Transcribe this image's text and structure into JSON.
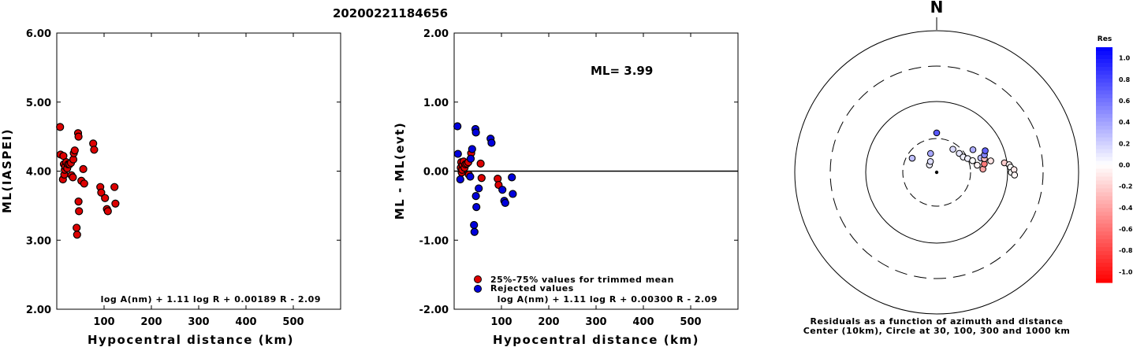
{
  "figure_title": "20200221184656",
  "chart_data": [
    {
      "type": "scatter",
      "ylabel": "ML(IASPEI)",
      "xlabel": "Hypocentral distance (km)",
      "xlim": [
        0,
        600
      ],
      "ylim": [
        2.0,
        6.0
      ],
      "xticks": [
        100,
        200,
        300,
        400,
        500
      ],
      "xtick_labels": [
        "100",
        "200",
        "300",
        "400",
        "500"
      ],
      "yticks": [
        2.0,
        3.0,
        4.0,
        5.0,
        6.0
      ],
      "ytick_labels": [
        "2.00",
        "3.00",
        "4.00",
        "5.00",
        "6.00"
      ],
      "formula": "log A(nm) + 1.11 log R + 0.00189 R - 2.09",
      "series": [
        {
          "color": "#dd0000",
          "points": [
            [
              7,
              4.64
            ],
            [
              8,
              4.24
            ],
            [
              13,
              3.88
            ],
            [
              14,
              4.22
            ],
            [
              15,
              4.1
            ],
            [
              16,
              3.95
            ],
            [
              17,
              4.02
            ],
            [
              18,
              4.07
            ],
            [
              20,
              4.13
            ],
            [
              22,
              4.04
            ],
            [
              24,
              4.1
            ],
            [
              27,
              4.1
            ],
            [
              30,
              4.12
            ],
            [
              31,
              3.94
            ],
            [
              34,
              3.91
            ],
            [
              35,
              4.17
            ],
            [
              36,
              4.26
            ],
            [
              38,
              4.3
            ],
            [
              42,
              3.18
            ],
            [
              43,
              3.08
            ],
            [
              45,
              4.55
            ],
            [
              46,
              4.5
            ],
            [
              46,
              3.56
            ],
            [
              47,
              3.42
            ],
            [
              52,
              3.86
            ],
            [
              56,
              4.03
            ],
            [
              58,
              3.82
            ],
            [
              77,
              4.4
            ],
            [
              79,
              4.31
            ],
            [
              92,
              3.77
            ],
            [
              94,
              3.69
            ],
            [
              102,
              3.61
            ],
            [
              106,
              3.45
            ],
            [
              108,
              3.42
            ],
            [
              122,
              3.77
            ],
            [
              124,
              3.53
            ]
          ]
        }
      ]
    },
    {
      "type": "scatter",
      "ylabel": "ML - ML(evt)",
      "xlabel": "Hypocentral distance (km)",
      "xlim": [
        0,
        600
      ],
      "ylim": [
        -2.0,
        2.0
      ],
      "xticks": [
        100,
        200,
        300,
        400,
        500
      ],
      "xtick_labels": [
        "100",
        "200",
        "300",
        "400",
        "500"
      ],
      "yticks": [
        -2.0,
        -1.0,
        0.0,
        1.0,
        2.0
      ],
      "ytick_labels": [
        "-2.00",
        "-1.00",
        "0.00",
        "1.00",
        "2.00"
      ],
      "annotation": "ML= 3.99",
      "formula": "log A(nm) + 1.11 log R + 0.00300 R - 2.09",
      "legend": [
        "25%-75% values for trimmed mean",
        "Rejected values"
      ],
      "series": [
        {
          "name": "25%-75% values for trimmed mean",
          "color": "#dd0000",
          "points": [
            [
              14,
              0.05
            ],
            [
              15,
              0.13
            ],
            [
              16,
              -0.02
            ],
            [
              17,
              0.02
            ],
            [
              18,
              0.09
            ],
            [
              20,
              0.14
            ],
            [
              22,
              0.05
            ],
            [
              24,
              0.1
            ],
            [
              27,
              0.11
            ],
            [
              30,
              0.13
            ],
            [
              31,
              -0.05
            ],
            [
              36,
              0.26
            ],
            [
              56,
              0.11
            ],
            [
              58,
              -0.1
            ],
            [
              92,
              -0.11
            ],
            [
              94,
              -0.2
            ]
          ]
        },
        {
          "name": "Rejected values",
          "color": "#0000dd",
          "points": [
            [
              7,
              0.65
            ],
            [
              8,
              0.25
            ],
            [
              13,
              -0.12
            ],
            [
              34,
              -0.08
            ],
            [
              35,
              0.18
            ],
            [
              38,
              0.32
            ],
            [
              42,
              -0.78
            ],
            [
              43,
              -0.88
            ],
            [
              45,
              0.61
            ],
            [
              46,
              0.56
            ],
            [
              46,
              -0.36
            ],
            [
              47,
              -0.52
            ],
            [
              52,
              -0.25
            ],
            [
              77,
              0.47
            ],
            [
              79,
              0.41
            ],
            [
              102,
              -0.27
            ],
            [
              106,
              -0.43
            ],
            [
              108,
              -0.46
            ],
            [
              122,
              -0.09
            ],
            [
              124,
              -0.33
            ]
          ]
        }
      ]
    },
    {
      "type": "scatter",
      "subtype": "polar",
      "north_label": "N",
      "caption": [
        "Residuals as a function of azimuth and distance",
        "Center (10km), Circle at 30, 100, 300 and 1000 km"
      ],
      "rings_km": [
        30,
        100,
        300,
        1000
      ],
      "colorbar_title": "Res",
      "colorbar_labels": [
        "1.0",
        "0.8",
        "0.6",
        "0.4",
        "0.2",
        "0.0",
        "-0.2",
        "-0.4",
        "-0.6",
        "-0.8",
        "-1.0"
      ],
      "points": [
        {
          "az": 316,
          "dist": 14,
          "res": 0.05
        },
        {
          "az": 330,
          "dist": 15,
          "res": 0.13
        },
        {
          "az": 342,
          "dist": 19,
          "res": 0.35
        },
        {
          "az": 35,
          "dist": 25,
          "res": 0.14
        },
        {
          "az": 50,
          "dist": 26,
          "res": 0.1
        },
        {
          "az": 60,
          "dist": 27,
          "res": 0.05
        },
        {
          "az": 66,
          "dist": 30,
          "res": 0.06
        },
        {
          "az": 72,
          "dist": 34,
          "res": 0.0
        },
        {
          "az": 80,
          "dist": 38,
          "res": -0.05
        },
        {
          "az": 58,
          "dist": 40,
          "res": 0.32
        },
        {
          "az": 72,
          "dist": 45,
          "res": 0.25
        },
        {
          "az": 86,
          "dist": 45,
          "res": -0.36
        },
        {
          "az": 80,
          "dist": 48,
          "res": -0.52
        },
        {
          "az": 74,
          "dist": 50,
          "res": -0.25
        },
        {
          "az": 70,
          "dist": 52,
          "res": 0.47
        },
        {
          "az": 66,
          "dist": 56,
          "res": 0.61
        },
        {
          "az": 78,
          "dist": 60,
          "res": -0.1
        },
        {
          "az": 82,
          "dist": 92,
          "res": -0.2
        },
        {
          "az": 84,
          "dist": 106,
          "res": -0.05
        },
        {
          "az": 86,
          "dist": 110,
          "res": 0.0
        },
        {
          "az": 90,
          "dist": 112,
          "res": 0.0
        },
        {
          "az": 88,
          "dist": 122,
          "res": -0.09
        },
        {
          "az": 92,
          "dist": 124,
          "res": -0.03
        },
        {
          "az": 0,
          "dist": 36,
          "res": 0.65
        },
        {
          "az": 300,
          "dist": 25,
          "res": 0.25
        }
      ]
    }
  ]
}
